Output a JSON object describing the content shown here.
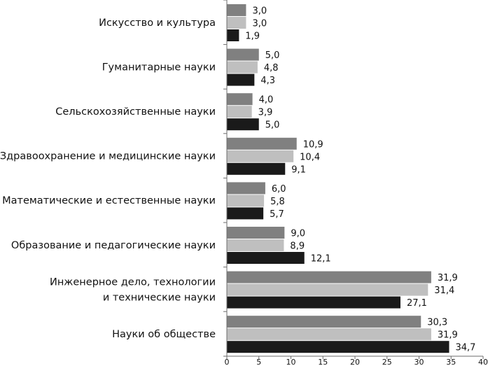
{
  "chart_data": {
    "type": "bar",
    "orientation": "horizontal",
    "categories": [
      [
        "Искусство и культура"
      ],
      [
        "Гуманитарные науки"
      ],
      [
        "Сельскохозяйственные науки"
      ],
      [
        "Здравоохранение и медицинские науки"
      ],
      [
        "Математические и естественные науки"
      ],
      [
        "Образование и педагогические науки"
      ],
      [
        "Инженерное дело, технологии",
        "и технические науки"
      ],
      [
        "Науки об обществе"
      ]
    ],
    "series": [
      {
        "color": "#808080",
        "values": [
          3.0,
          5.0,
          4.0,
          10.9,
          6.0,
          9.0,
          31.9,
          30.3
        ],
        "labels": [
          "3,0",
          "5,0",
          "4,0",
          "10,9",
          "6,0",
          "9,0",
          "31,9",
          "30,3"
        ]
      },
      {
        "color": "#bfbfbf",
        "values": [
          3.0,
          4.8,
          3.9,
          10.4,
          5.8,
          8.9,
          31.4,
          31.9
        ],
        "labels": [
          "3,0",
          "4,8",
          "3,9",
          "10,4",
          "5,8",
          "8,9",
          "31,4",
          "31,9"
        ]
      },
      {
        "color": "#1a1a1a",
        "values": [
          1.9,
          4.3,
          5.0,
          9.1,
          5.7,
          12.1,
          27.1,
          34.7
        ],
        "labels": [
          "1,9",
          "4,3",
          "5,0",
          "9,1",
          "5,7",
          "12,1",
          "27,1",
          "34,7"
        ]
      }
    ],
    "xlim": [
      0,
      40
    ],
    "xticks": [
      0,
      5,
      10,
      15,
      20,
      25,
      30,
      35,
      40
    ],
    "grid": false,
    "legend": "none"
  }
}
